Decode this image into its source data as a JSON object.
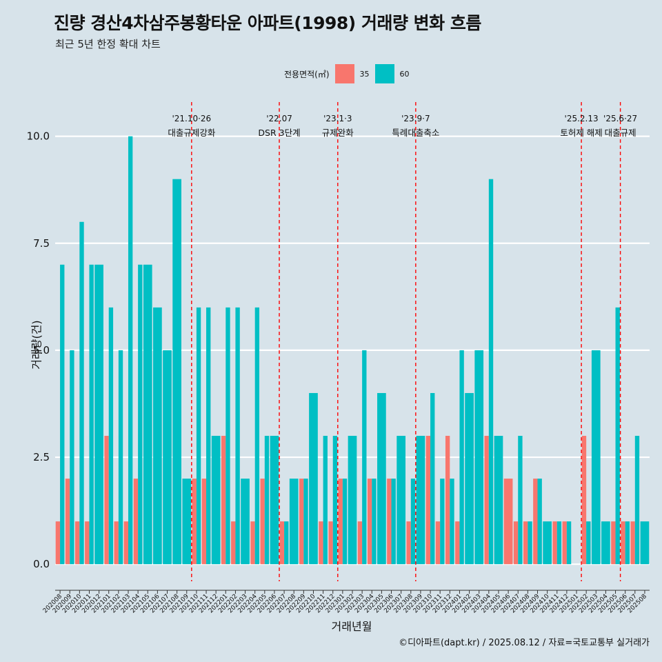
{
  "title": "진량 경산4차삼주봉황타운 아파트(1998) 거래량 변화 흐름",
  "subtitle": "최근 5년 한정 확대 차트",
  "legend": {
    "title": "전용면적(㎡)",
    "items": [
      {
        "label": "35",
        "color": "#f8766d"
      },
      {
        "label": "60",
        "color": "#00bfc4"
      }
    ]
  },
  "caption": "©디아파트(dapt.kr) / 2025.08.12 / 자료=국토교통부 실거래가",
  "chart_data": {
    "type": "bar",
    "xlabel": "거래년월",
    "ylabel": "거래량(건)",
    "ylim": [
      -0.4,
      10.8
    ],
    "yticks": [
      0.0,
      2.5,
      5.0,
      7.5,
      10.0
    ],
    "ytick_labels": [
      "0.0",
      "2.5",
      "5.0",
      "7.5",
      "10.0"
    ],
    "categories": [
      "202008",
      "202009",
      "202010",
      "202011",
      "202012",
      "202101",
      "202102",
      "202103",
      "202104",
      "202105",
      "202106",
      "202107",
      "202108",
      "202109",
      "202110",
      "202111",
      "202112",
      "202201",
      "202202",
      "202203",
      "202204",
      "202205",
      "202206",
      "202207",
      "202208",
      "202209",
      "202210",
      "202211",
      "202212",
      "202301",
      "202302",
      "202303",
      "202304",
      "202305",
      "202306",
      "202307",
      "202308",
      "202309",
      "202310",
      "202311",
      "202312",
      "202401",
      "202402",
      "202403",
      "202404",
      "202405",
      "202406",
      "202407",
      "202408",
      "202409",
      "202410",
      "202411",
      "202412",
      "202501",
      "202502",
      "202503",
      "202504",
      "202505",
      "202506",
      "202507",
      "202508"
    ],
    "series": [
      {
        "name": "35",
        "color": "#f8766d",
        "values": [
          1,
          2,
          1,
          1,
          0,
          3,
          1,
          1,
          2,
          0,
          0,
          0,
          0,
          0,
          2,
          2,
          0,
          3,
          1,
          0,
          1,
          2,
          0,
          1,
          0,
          2,
          0,
          1,
          1,
          2,
          0,
          1,
          2,
          0,
          2,
          0,
          1,
          0,
          3,
          1,
          3,
          1,
          0,
          0,
          3,
          0,
          2,
          1,
          1,
          2,
          0,
          1,
          1,
          0,
          3,
          0,
          0,
          1,
          1,
          1,
          0
        ]
      },
      {
        "name": "60",
        "color": "#00bfc4",
        "values": [
          7,
          5,
          8,
          7,
          7,
          6,
          5,
          10,
          7,
          7,
          6,
          5,
          9,
          2,
          6,
          6,
          3,
          6,
          6,
          2,
          6,
          3,
          3,
          1,
          2,
          2,
          4,
          3,
          3,
          2,
          3,
          5,
          2,
          4,
          2,
          3,
          2,
          3,
          4,
          2,
          2,
          5,
          4,
          5,
          9,
          3,
          0,
          3,
          1,
          2,
          1,
          1,
          1,
          0,
          1,
          5,
          1,
          6,
          1,
          3,
          1
        ]
      }
    ],
    "events": [
      {
        "category": "202110",
        "date": "'21.10·26",
        "label": "대출규제강화"
      },
      {
        "category": "202207",
        "date": "'22.07",
        "label": "DSR 3단계"
      },
      {
        "category": "202301",
        "date": "'23.1·3",
        "label": "규제완화"
      },
      {
        "category": "202309",
        "date": "'23.9·7",
        "label": "특례대출축소"
      },
      {
        "category": "202502",
        "date": "'25.2.13",
        "label": "토허제 해제"
      },
      {
        "category": "202506",
        "date": "'25.6·27",
        "label": "대출규제"
      }
    ]
  }
}
